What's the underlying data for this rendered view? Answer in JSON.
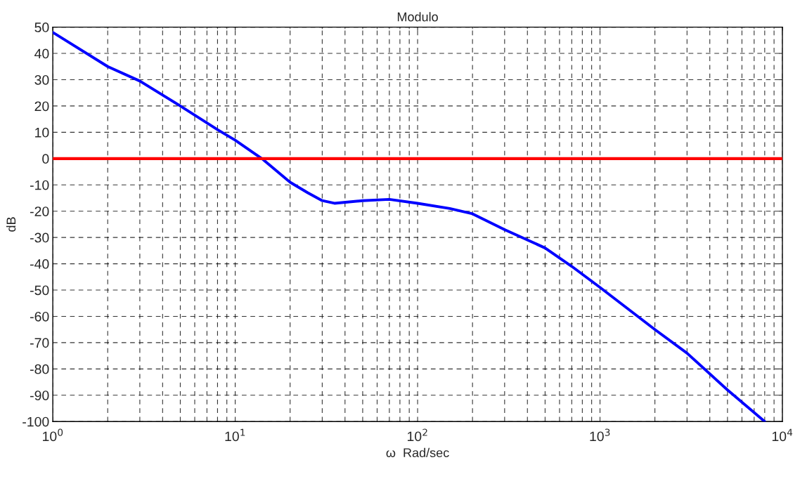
{
  "chart_data": {
    "type": "line",
    "title": "Modulo",
    "xlabel": "ω  Rad/sec",
    "ylabel": "dB",
    "log": "x",
    "x": [
      1,
      2,
      3,
      5,
      8,
      10,
      14,
      20,
      25,
      30,
      35,
      50,
      70,
      100,
      150,
      200,
      300,
      500,
      700,
      1000,
      2000,
      3000,
      5000,
      8000
    ],
    "series": [
      {
        "color": "#0000ff",
        "values": [
          48,
          35,
          29.5,
          20,
          11,
          7,
          0,
          -9,
          -13,
          -16,
          -17,
          -16,
          -15.5,
          -17,
          -19,
          -21,
          -27,
          -34,
          -41,
          -49,
          -65,
          -74,
          -88,
          -100
        ]
      }
    ],
    "ref_lines": [
      {
        "axis": "y",
        "value": 0,
        "color": "#ff0000"
      }
    ],
    "xlim": [
      1,
      10000
    ],
    "ylim": [
      -100,
      50
    ],
    "xticks": [
      {
        "value": 1,
        "label": "10$^{0}$"
      },
      {
        "value": 10,
        "label": "10$^{1}$"
      },
      {
        "value": 100,
        "label": "10$^{2}$"
      },
      {
        "value": 1000,
        "label": "10$^{3}$"
      },
      {
        "value": 10000,
        "label": "10$^{4}$"
      }
    ],
    "yticks": [
      -100,
      -90,
      -80,
      -70,
      -60,
      -50,
      -40,
      -30,
      -20,
      -10,
      0,
      10,
      20,
      30,
      40,
      50
    ],
    "grid": true,
    "marker": "none",
    "line_style": "solid"
  }
}
